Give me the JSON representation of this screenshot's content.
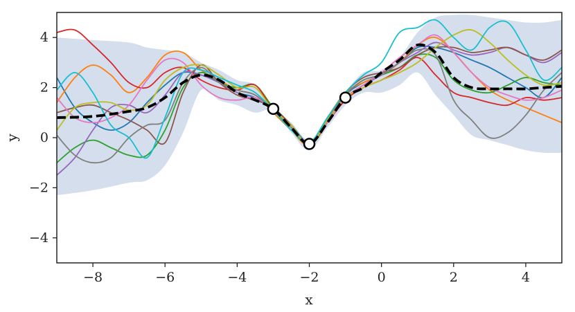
{
  "chart_data": {
    "type": "line",
    "title": "",
    "xlabel": "x",
    "ylabel": "y",
    "xlim": [
      -9,
      5
    ],
    "ylim": [
      -5,
      5
    ],
    "xticks": [
      -8,
      -6,
      -4,
      -2,
      0,
      2,
      4
    ],
    "yticks": [
      -4,
      -2,
      0,
      2,
      4
    ],
    "xtick_labels": [
      "−8",
      "−6",
      "−4",
      "−2",
      "0",
      "2",
      "4"
    ],
    "ytick_labels": [
      "−4",
      "−2",
      "0",
      "2",
      "4"
    ],
    "grid": false,
    "legend": "none",
    "confidence_band": {
      "color": "#b8c8e0",
      "x": [
        -9,
        -8,
        -7,
        -6.5,
        -6,
        -5.5,
        -5,
        -4.5,
        -4,
        -3.5,
        -3,
        -2.5,
        -2,
        -1.5,
        -1,
        -0.5,
        0,
        0.5,
        1,
        1.5,
        2,
        2.5,
        3,
        3.5,
        4,
        4.5,
        5
      ],
      "upper": [
        4.0,
        3.9,
        3.8,
        3.6,
        3.5,
        3.4,
        3.0,
        2.7,
        2.3,
        2.1,
        1.2,
        0.6,
        -0.1,
        0.7,
        1.8,
        2.6,
        2.7,
        3.2,
        4.2,
        4.8,
        4.9,
        4.9,
        4.8,
        4.7,
        4.6,
        4.6,
        4.7
      ],
      "lower": [
        -2.3,
        -2.1,
        -1.8,
        -1.7,
        -1.1,
        0.2,
        1.9,
        1.5,
        1.3,
        1.0,
        1.1,
        0.2,
        -0.5,
        0.4,
        1.3,
        1.8,
        1.8,
        2.1,
        2.6,
        1.7,
        0.9,
        0.1,
        -0.1,
        -0.3,
        -0.5,
        -0.6,
        -0.6
      ]
    },
    "mean": {
      "color": "#000000",
      "x": [
        -9,
        -8,
        -7,
        -6.5,
        -6,
        -5.5,
        -5,
        -4.5,
        -4,
        -3.5,
        -3,
        -2.5,
        -2,
        -1.5,
        -1,
        -0.5,
        0,
        0.5,
        1,
        1.5,
        2,
        2.5,
        3,
        3.5,
        4,
        4.5,
        5
      ],
      "y": [
        0.8,
        0.85,
        1.05,
        1.2,
        1.6,
        2.2,
        2.5,
        2.3,
        1.8,
        1.5,
        1.15,
        0.4,
        -0.25,
        0.6,
        1.6,
        2.0,
        2.6,
        3.1,
        3.7,
        3.4,
        2.4,
        2.0,
        1.95,
        1.95,
        1.95,
        2.0,
        2.05
      ]
    },
    "observations": {
      "x": [
        -3,
        -2,
        -1
      ],
      "y": [
        1.15,
        -0.25,
        1.6
      ]
    },
    "series": [
      {
        "color": "#1f77b4",
        "x": [
          -9,
          -8.5,
          -8,
          -7.5,
          -7,
          -6.5,
          -6,
          -5.5,
          -5,
          -4.5,
          -4,
          -3.5,
          -3,
          -2.5,
          -2,
          -1.5,
          -1,
          -0.5,
          0,
          0.5,
          1,
          1.5,
          2,
          2.5,
          3,
          3.5,
          4,
          4.5,
          5
        ],
        "y": [
          2.4,
          1.2,
          0.6,
          0.3,
          0.6,
          1.4,
          2.1,
          2.6,
          2.5,
          2.2,
          1.8,
          1.6,
          1.1,
          0.5,
          -0.2,
          0.7,
          1.7,
          2.2,
          2.5,
          3.0,
          3.6,
          3.6,
          3.4,
          3.1,
          2.8,
          2.4,
          2.0,
          1.6,
          2.4
        ]
      },
      {
        "color": "#ff7f0e",
        "x": [
          -9,
          -8.5,
          -8,
          -7.5,
          -7,
          -6.5,
          -6,
          -5.5,
          -5,
          -4.5,
          -4,
          -3.5,
          -3,
          -2.5,
          -2,
          -1.5,
          -1,
          -0.5,
          0,
          0.5,
          1,
          1.5,
          2,
          2.5,
          3,
          3.5,
          4,
          4.5,
          5
        ],
        "y": [
          1.4,
          2.4,
          2.9,
          2.5,
          1.8,
          2.4,
          3.3,
          3.4,
          2.7,
          2.3,
          1.9,
          1.7,
          1.0,
          0.3,
          -0.3,
          0.8,
          1.8,
          2.2,
          2.5,
          3.0,
          3.7,
          4.0,
          3.4,
          2.6,
          1.9,
          1.5,
          1.2,
          0.9,
          0.6
        ]
      },
      {
        "color": "#2ca02c",
        "x": [
          -9,
          -8.5,
          -8,
          -7.5,
          -7,
          -6.5,
          -6,
          -5.5,
          -5,
          -4.5,
          -4,
          -3.5,
          -3,
          -2.5,
          -2,
          -1.5,
          -1,
          -0.5,
          0,
          0.5,
          1,
          1.5,
          2,
          2.5,
          3,
          3.5,
          4,
          4.5,
          5
        ],
        "y": [
          -1.0,
          -0.4,
          -0.1,
          -0.4,
          -0.7,
          -0.7,
          0.3,
          2.0,
          2.6,
          2.2,
          2.0,
          2.1,
          1.2,
          0.5,
          -0.3,
          0.6,
          1.7,
          2.3,
          2.5,
          2.8,
          3.3,
          3.2,
          2.3,
          1.9,
          1.8,
          2.1,
          2.4,
          2.2,
          2.1
        ]
      },
      {
        "color": "#d62728",
        "x": [
          -9,
          -8.5,
          -8,
          -7.5,
          -7,
          -6.5,
          -6,
          -5.5,
          -5,
          -4.5,
          -4,
          -3.5,
          -3,
          -2.5,
          -2,
          -1.5,
          -1,
          -0.5,
          0,
          0.5,
          1,
          1.5,
          2,
          2.5,
          3,
          3.5,
          4,
          4.5,
          5
        ],
        "y": [
          4.2,
          4.3,
          3.7,
          3.0,
          2.2,
          2.0,
          2.6,
          2.8,
          2.3,
          2.0,
          1.9,
          2.1,
          1.1,
          0.4,
          -0.3,
          0.6,
          1.5,
          2.0,
          2.3,
          2.7,
          3.2,
          2.5,
          1.8,
          1.6,
          1.4,
          1.3,
          1.6,
          1.5,
          1.6
        ]
      },
      {
        "color": "#9467bd",
        "x": [
          -9,
          -8.5,
          -8,
          -7.5,
          -7,
          -6.5,
          -6,
          -5.5,
          -5,
          -4.5,
          -4,
          -3.5,
          -3,
          -2.5,
          -2,
          -1.5,
          -1,
          -0.5,
          0,
          0.5,
          1,
          1.5,
          2,
          2.5,
          3,
          3.5,
          4,
          4.5,
          5
        ],
        "y": [
          -1.5,
          -0.8,
          0.3,
          1.2,
          1.3,
          1.0,
          1.7,
          2.6,
          2.5,
          2.2,
          1.8,
          1.5,
          1.2,
          0.4,
          -0.2,
          0.7,
          1.6,
          2.1,
          2.5,
          3.0,
          3.4,
          3.8,
          3.5,
          3.3,
          3.4,
          3.6,
          3.3,
          3.0,
          3.4
        ]
      },
      {
        "color": "#8c564b",
        "x": [
          -9,
          -8.5,
          -8,
          -7.5,
          -7,
          -6.5,
          -6,
          -5.5,
          -5,
          -4.5,
          -4,
          -3.5,
          -3,
          -2.5,
          -2,
          -1.5,
          -1,
          -0.5,
          0,
          0.5,
          1,
          1.5,
          2,
          2.5,
          3,
          3.5,
          4,
          4.5,
          5
        ],
        "y": [
          1.0,
          1.2,
          1.3,
          1.0,
          0.7,
          0.3,
          -0.2,
          1.8,
          2.9,
          2.2,
          1.7,
          1.5,
          1.2,
          0.5,
          -0.3,
          0.7,
          1.8,
          2.4,
          2.6,
          2.8,
          3.3,
          3.6,
          3.6,
          3.4,
          3.5,
          3.6,
          3.3,
          3.1,
          3.5
        ]
      },
      {
        "color": "#e377c2",
        "x": [
          -9,
          -8.5,
          -8,
          -7.5,
          -7,
          -6.5,
          -6,
          -5.5,
          -5,
          -4.5,
          -4,
          -3.5,
          -3,
          -2.5,
          -2,
          -1.5,
          -1,
          -0.5,
          0,
          0.5,
          1,
          1.5,
          2,
          2.5,
          3,
          3.5,
          4,
          4.5,
          5
        ],
        "y": [
          1.6,
          0.8,
          0.6,
          0.8,
          1.3,
          2.3,
          3.1,
          3.0,
          2.1,
          1.6,
          1.5,
          1.6,
          1.1,
          0.4,
          -0.2,
          0.6,
          1.6,
          2.1,
          2.6,
          3.2,
          3.7,
          4.1,
          3.4,
          2.6,
          2.0,
          1.7,
          1.5,
          1.6,
          1.9
        ]
      },
      {
        "color": "#7f7f7f",
        "x": [
          -9,
          -8.5,
          -8,
          -7.5,
          -7,
          -6.5,
          -6,
          -5.5,
          -5,
          -4.5,
          -4,
          -3.5,
          -3,
          -2.5,
          -2,
          -1.5,
          -1,
          -0.5,
          0,
          0.5,
          1,
          1.5,
          2,
          2.5,
          3,
          3.5,
          4,
          4.5,
          5
        ],
        "y": [
          0.1,
          -0.7,
          -1.0,
          -0.8,
          0.0,
          0.5,
          0.7,
          2.2,
          2.8,
          2.2,
          1.9,
          1.7,
          1.1,
          0.4,
          -0.3,
          0.7,
          1.7,
          2.3,
          2.5,
          3.0,
          3.5,
          3.3,
          1.5,
          0.7,
          0.0,
          0.2,
          0.9,
          1.9,
          2.6
        ]
      },
      {
        "color": "#bcbd22",
        "x": [
          -9,
          -8.5,
          -8,
          -7.5,
          -7,
          -6.5,
          -6,
          -5.5,
          -5,
          -4.5,
          -4,
          -3.5,
          -3,
          -2.5,
          -2,
          -1.5,
          -1,
          -0.5,
          0,
          0.5,
          1,
          1.5,
          2,
          2.5,
          3,
          3.5,
          4,
          4.5,
          5
        ],
        "y": [
          0.3,
          1.2,
          1.4,
          1.4,
          1.1,
          1.3,
          2.3,
          2.8,
          2.9,
          2.5,
          2.0,
          2.0,
          1.1,
          0.5,
          -0.3,
          0.7,
          1.6,
          2.0,
          2.3,
          2.6,
          3.0,
          3.6,
          4.1,
          4.3,
          3.8,
          3.1,
          2.5,
          2.1,
          2.2
        ]
      },
      {
        "color": "#17becf",
        "x": [
          -9,
          -8.5,
          -8,
          -7.5,
          -7,
          -6.5,
          -6,
          -5.5,
          -5,
          -4.5,
          -4,
          -3.5,
          -3,
          -2.5,
          -2,
          -1.5,
          -1,
          -0.5,
          0,
          0.5,
          1,
          1.5,
          2,
          2.5,
          3,
          3.5,
          4,
          4.5,
          5
        ],
        "y": [
          1.9,
          2.6,
          1.8,
          0.5,
          0.0,
          -0.8,
          0.8,
          2.6,
          2.7,
          2.4,
          2.1,
          1.8,
          1.1,
          0.3,
          -0.2,
          0.8,
          1.8,
          2.5,
          3.0,
          4.2,
          4.4,
          4.7,
          4.0,
          3.5,
          4.4,
          4.6,
          3.5,
          2.3,
          2.8
        ]
      }
    ]
  }
}
